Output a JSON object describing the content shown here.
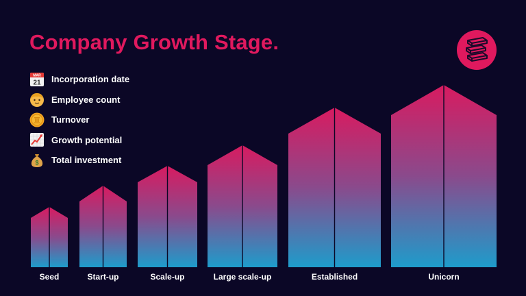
{
  "title": "Company Growth Stage.",
  "colors": {
    "background": "#0b0726",
    "accent": "#e0195e",
    "gradient_top": "#d81b60",
    "gradient_bottom": "#1e9ccb",
    "text": "#ffffff"
  },
  "legend": [
    {
      "icon": "calendar-icon",
      "label": "Incorporation date"
    },
    {
      "icon": "person-face-icon",
      "label": "Employee count"
    },
    {
      "icon": "coin-icon",
      "label": "Turnover"
    },
    {
      "icon": "chart-increasing-icon",
      "label": "Growth potential"
    },
    {
      "icon": "money-bag-icon",
      "label": "Total investment"
    }
  ],
  "calendar_icon_text": {
    "month": "MAR",
    "day": "21"
  },
  "stages": [
    {
      "name": "Seed"
    },
    {
      "name": "Start-up"
    },
    {
      "name": "Scale-up"
    },
    {
      "name": "Large scale-up"
    },
    {
      "name": "Established"
    },
    {
      "name": "Unicorn"
    }
  ],
  "logo_icon": "stacked-layers-icon"
}
